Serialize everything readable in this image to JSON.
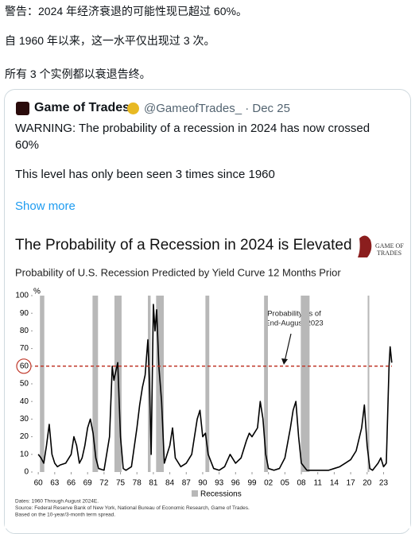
{
  "post": {
    "lines": [
      "警告：2024 年经济衰退的可能性现已超过 60%。",
      "自 1960 年以来，这一水平仅出现过 3 次。",
      "所有 3 个实例都以衰退告终。"
    ],
    "quote": {
      "author": "Game of Trades",
      "handle": "@GameofTrades_ · Dec 25",
      "text": "WARNING: The probability of a recession in 2024 has now crossed 60%",
      "text2": "This level has only been seen 3 times since 1960",
      "more": "Show more"
    }
  },
  "chart_data": {
    "type": "line",
    "title": "The Probability of a Recession in 2024 is Elevated",
    "subtitle": "Probability of U.S. Recession Predicted by Yield Curve 12 Months Prior",
    "logo_lines": [
      "GAME OF",
      "TRADES"
    ],
    "y_unit": "%",
    "x": [
      1960,
      1960.5,
      1961,
      1961.5,
      1962,
      1962.5,
      1963,
      1963.5,
      1964,
      1965,
      1966,
      1966.5,
      1967,
      1967.5,
      1968,
      1968.5,
      1969,
      1969.5,
      1970,
      1970.5,
      1971,
      1972,
      1973,
      1973.5,
      1973.8,
      1974,
      1974.5,
      1975,
      1975.5,
      1976,
      1977,
      1978,
      1978.5,
      1979,
      1979.5,
      1980,
      1980.3,
      1980.6,
      1981,
      1981.3,
      1981.6,
      1982,
      1982.5,
      1983,
      1984,
      1984.5,
      1985,
      1986,
      1987,
      1988,
      1989,
      1989.5,
      1990,
      1990.5,
      1991,
      1992,
      1993,
      1994,
      1995,
      1996,
      1997,
      1998,
      1998.5,
      1999,
      2000,
      2000.5,
      2001,
      2001.5,
      2002,
      2003,
      2004,
      2005,
      2006,
      2006.5,
      2007,
      2007.5,
      2008,
      2009,
      2010,
      2011,
      2012,
      2013,
      2014,
      2015,
      2016,
      2017,
      2018,
      2019,
      2019.5,
      2020,
      2020.5,
      2021,
      2022,
      2022.5,
      2023,
      2023.5,
      2024,
      2024.2,
      2024.5
    ],
    "values": [
      10,
      8,
      5,
      15,
      27,
      10,
      5,
      3,
      4,
      5,
      10,
      20,
      15,
      5,
      8,
      15,
      25,
      30,
      22,
      8,
      2,
      1,
      20,
      60,
      52,
      55,
      62,
      20,
      2,
      1,
      3,
      25,
      38,
      48,
      55,
      75,
      50,
      10,
      95,
      80,
      92,
      60,
      40,
      5,
      15,
      25,
      8,
      3,
      5,
      10,
      30,
      35,
      20,
      22,
      10,
      2,
      1,
      3,
      10,
      5,
      8,
      18,
      22,
      20,
      25,
      40,
      30,
      10,
      2,
      1,
      2,
      8,
      25,
      35,
      40,
      20,
      5,
      1,
      1,
      1,
      1,
      1,
      2,
      3,
      5,
      7,
      12,
      25,
      38,
      15,
      2,
      1,
      5,
      8,
      3,
      5,
      60,
      71,
      62
    ],
    "color": "#000000",
    "xlim": [
      1959.4,
      2025.4
    ],
    "ylim": [
      0,
      100
    ],
    "yticks": [
      0,
      10,
      20,
      30,
      40,
      50,
      60,
      70,
      80,
      90,
      100
    ],
    "xticks": [
      {
        "value": 1960,
        "label": "60"
      },
      {
        "value": 1963,
        "label": "63"
      },
      {
        "value": 1966,
        "label": "66"
      },
      {
        "value": 1969,
        "label": "69"
      },
      {
        "value": 1972,
        "label": "72"
      },
      {
        "value": 1975,
        "label": "75"
      },
      {
        "value": 1978,
        "label": "78"
      },
      {
        "value": 1981,
        "label": "81"
      },
      {
        "value": 1984,
        "label": "84"
      },
      {
        "value": 1987,
        "label": "87"
      },
      {
        "value": 1990,
        "label": "90"
      },
      {
        "value": 1993,
        "label": "93"
      },
      {
        "value": 1996,
        "label": "96"
      },
      {
        "value": 1999,
        "label": "99"
      },
      {
        "value": 2002,
        "label": "02"
      },
      {
        "value": 2005,
        "label": "05"
      },
      {
        "value": 2008,
        "label": "08"
      },
      {
        "value": 2011,
        "label": "11"
      },
      {
        "value": 2014,
        "label": "14"
      },
      {
        "value": 2017,
        "label": "17"
      },
      {
        "value": 2020,
        "label": "20"
      },
      {
        "value": 2023,
        "label": "23"
      }
    ],
    "recessions": [
      {
        "start": 1960.3,
        "end": 1961.1
      },
      {
        "start": 1969.9,
        "end": 1970.9
      },
      {
        "start": 1973.9,
        "end": 1975.2
      },
      {
        "start": 1980.0,
        "end": 1980.5
      },
      {
        "start": 1981.5,
        "end": 1982.9
      },
      {
        "start": 1990.5,
        "end": 1991.2
      },
      {
        "start": 2001.2,
        "end": 2001.9
      },
      {
        "start": 2007.9,
        "end": 2009.5
      },
      {
        "start": 2020.1,
        "end": 2020.4
      }
    ],
    "recession_color": "#b8b8b8",
    "recession_label": "Recessions",
    "threshold": 60,
    "threshold_color": "#c0392b",
    "threshold_tick": 6,
    "annotation": [
      "Probability as of",
      "End-August 2023"
    ],
    "footer": [
      "Dates: 1960 Through August 2024E.",
      "Source: Federal Reserve Bank of New York, National Bureau of Economic Research, Game of Trades.",
      "Based on the 10-year/3-month term spread."
    ]
  }
}
